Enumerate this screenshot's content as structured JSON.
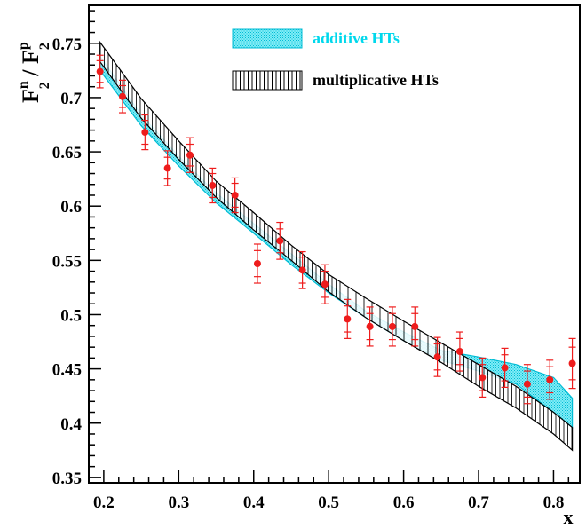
{
  "chart_data": {
    "type": "scatter",
    "xlabel": "x",
    "ylabel": {
      "F": "F",
      "n_sup": "n",
      "p_sup": "p",
      "sub": "2",
      "slash": " / "
    },
    "xlim": [
      0.18,
      0.835
    ],
    "ylim": [
      0.345,
      0.785
    ],
    "x_ticks": [
      {
        "value": 0.2,
        "label": "0.2"
      },
      {
        "value": 0.3,
        "label": "0.3"
      },
      {
        "value": 0.4,
        "label": "0.4"
      },
      {
        "value": 0.5,
        "label": "0.5"
      },
      {
        "value": 0.6,
        "label": "0.6"
      },
      {
        "value": 0.7,
        "label": "0.7"
      },
      {
        "value": 0.8,
        "label": "0.8"
      }
    ],
    "y_ticks": [
      {
        "value": 0.35,
        "label": "0.35"
      },
      {
        "value": 0.4,
        "label": "0.4"
      },
      {
        "value": 0.45,
        "label": "0.45"
      },
      {
        "value": 0.5,
        "label": "0.5"
      },
      {
        "value": 0.55,
        "label": "0.55"
      },
      {
        "value": 0.6,
        "label": "0.6"
      },
      {
        "value": 0.65,
        "label": "0.65"
      },
      {
        "value": 0.7,
        "label": "0.7"
      },
      {
        "value": 0.75,
        "label": "0.75"
      }
    ],
    "legend": {
      "position": "top-right",
      "entries": [
        {
          "label": "additive HTs",
          "style": "cyan-dotted-band",
          "color": "#00d8ec"
        },
        {
          "label": "multiplicative HTs",
          "style": "black-hatched-band",
          "color": "#000000"
        }
      ]
    },
    "data_points": {
      "color": "#ee1c1c",
      "points": [
        {
          "x": 0.195,
          "y": 0.724,
          "err_in": 0.01,
          "err_out": 0.015
        },
        {
          "x": 0.225,
          "y": 0.701,
          "err_in": 0.01,
          "err_out": 0.015
        },
        {
          "x": 0.255,
          "y": 0.668,
          "err_in": 0.011,
          "err_out": 0.016
        },
        {
          "x": 0.285,
          "y": 0.635,
          "err_in": 0.01,
          "err_out": 0.016
        },
        {
          "x": 0.315,
          "y": 0.647,
          "err_in": 0.01,
          "err_out": 0.016
        },
        {
          "x": 0.345,
          "y": 0.619,
          "err_in": 0.011,
          "err_out": 0.016
        },
        {
          "x": 0.375,
          "y": 0.61,
          "err_in": 0.011,
          "err_out": 0.016
        },
        {
          "x": 0.405,
          "y": 0.547,
          "err_in": 0.012,
          "err_out": 0.018
        },
        {
          "x": 0.435,
          "y": 0.568,
          "err_in": 0.011,
          "err_out": 0.017
        },
        {
          "x": 0.465,
          "y": 0.541,
          "err_in": 0.012,
          "err_out": 0.017
        },
        {
          "x": 0.495,
          "y": 0.528,
          "err_in": 0.012,
          "err_out": 0.018
        },
        {
          "x": 0.525,
          "y": 0.496,
          "err_in": 0.012,
          "err_out": 0.018
        },
        {
          "x": 0.555,
          "y": 0.489,
          "err_in": 0.012,
          "err_out": 0.018
        },
        {
          "x": 0.585,
          "y": 0.489,
          "err_in": 0.012,
          "err_out": 0.018
        },
        {
          "x": 0.615,
          "y": 0.489,
          "err_in": 0.012,
          "err_out": 0.018
        },
        {
          "x": 0.645,
          "y": 0.461,
          "err_in": 0.012,
          "err_out": 0.018
        },
        {
          "x": 0.675,
          "y": 0.466,
          "err_in": 0.012,
          "err_out": 0.018
        },
        {
          "x": 0.705,
          "y": 0.442,
          "err_in": 0.012,
          "err_out": 0.018
        },
        {
          "x": 0.735,
          "y": 0.451,
          "err_in": 0.012,
          "err_out": 0.018
        },
        {
          "x": 0.765,
          "y": 0.436,
          "err_in": 0.012,
          "err_out": 0.018
        },
        {
          "x": 0.795,
          "y": 0.44,
          "err_in": 0.012,
          "err_out": 0.018
        },
        {
          "x": 0.825,
          "y": 0.455,
          "err_in": 0.015,
          "err_out": 0.023
        }
      ]
    },
    "bands": [
      {
        "name": "additive HTs",
        "fill": "#00d8ec",
        "x": [
          0.195,
          0.25,
          0.3,
          0.35,
          0.4,
          0.45,
          0.5,
          0.55,
          0.6,
          0.65,
          0.7,
          0.75,
          0.8,
          0.825
        ],
        "lower": [
          0.725,
          0.674,
          0.637,
          0.603,
          0.575,
          0.546,
          0.52,
          0.497,
          0.476,
          0.458,
          0.448,
          0.436,
          0.41,
          0.396
        ],
        "upper": [
          0.738,
          0.684,
          0.646,
          0.612,
          0.584,
          0.556,
          0.528,
          0.503,
          0.484,
          0.467,
          0.461,
          0.454,
          0.442,
          0.423
        ]
      },
      {
        "name": "multiplicative HTs",
        "fill": "#000000",
        "x": [
          0.195,
          0.25,
          0.3,
          0.35,
          0.4,
          0.45,
          0.5,
          0.55,
          0.6,
          0.65,
          0.7,
          0.75,
          0.8,
          0.825
        ],
        "lower": [
          0.733,
          0.681,
          0.643,
          0.608,
          0.578,
          0.55,
          0.521,
          0.497,
          0.476,
          0.456,
          0.434,
          0.414,
          0.39,
          0.375
        ],
        "upper": [
          0.751,
          0.699,
          0.66,
          0.623,
          0.594,
          0.564,
          0.537,
          0.515,
          0.494,
          0.474,
          0.454,
          0.434,
          0.41,
          0.396
        ]
      }
    ]
  }
}
